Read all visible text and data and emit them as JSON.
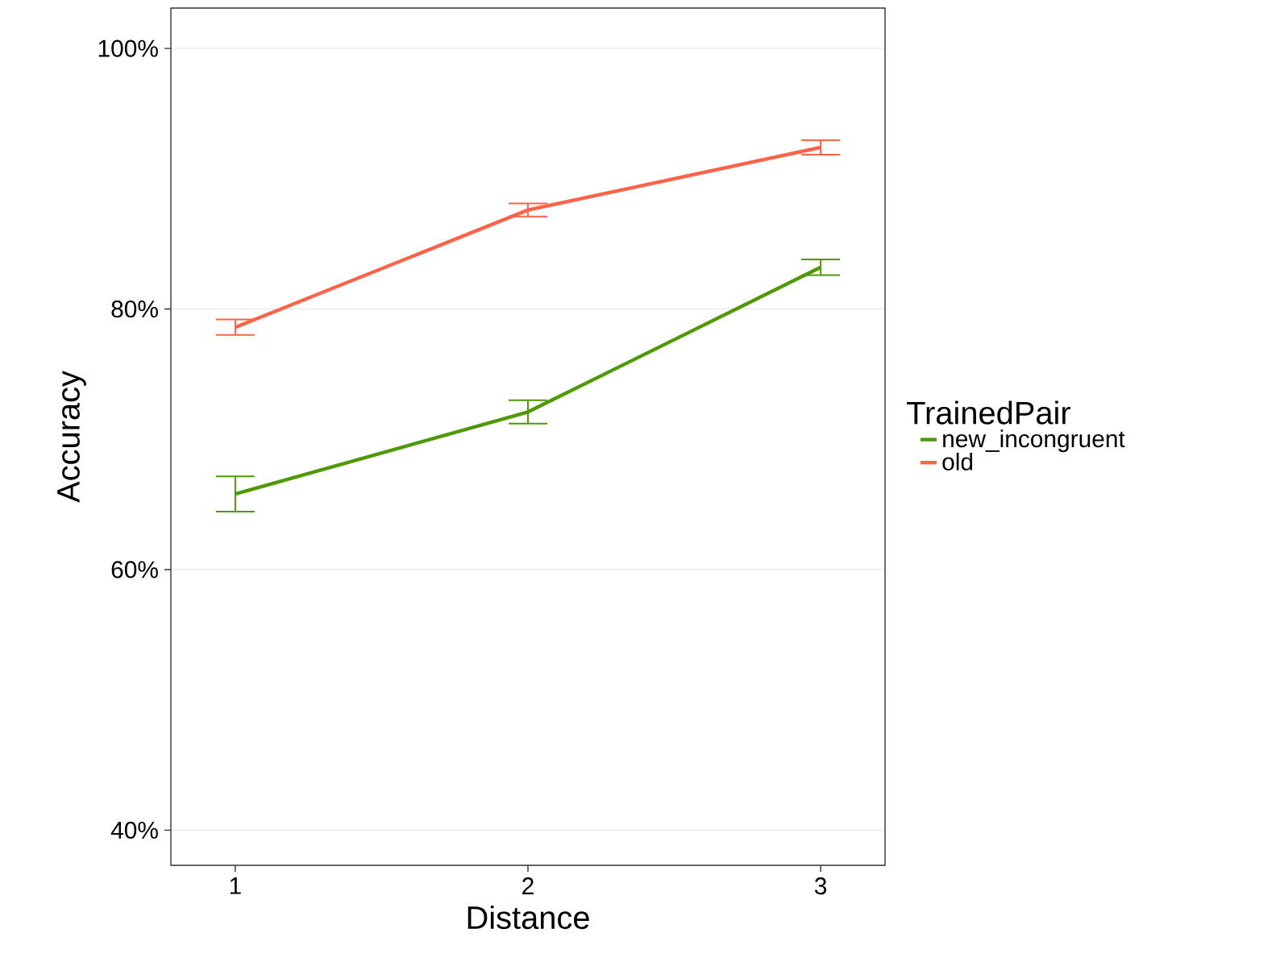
{
  "chart_data": {
    "type": "line",
    "xlabel": "Distance",
    "ylabel": "Accuracy",
    "legend_title": "TrainedPair",
    "x": [
      1,
      2,
      3
    ],
    "series": [
      {
        "name": "new_incongruent",
        "color": "#4d9a06",
        "values": [
          65.8,
          72.1,
          83.2
        ],
        "errors": [
          1.35,
          0.9,
          0.6
        ]
      },
      {
        "name": "old",
        "color": "#ff6347",
        "values": [
          78.6,
          87.6,
          92.4
        ],
        "errors": [
          0.6,
          0.5,
          0.55
        ]
      }
    ],
    "xlim": [
      0.78,
      3.22
    ],
    "xticks": [
      1,
      2,
      3
    ],
    "ylim": [
      37.3,
      103.1
    ],
    "yticks": [
      {
        "value": 40,
        "label": "40%"
      },
      {
        "value": 60,
        "label": "60%"
      },
      {
        "value": 80,
        "label": "80%"
      },
      {
        "value": 100,
        "label": "100%"
      }
    ],
    "grid": "y",
    "legend": "right"
  }
}
